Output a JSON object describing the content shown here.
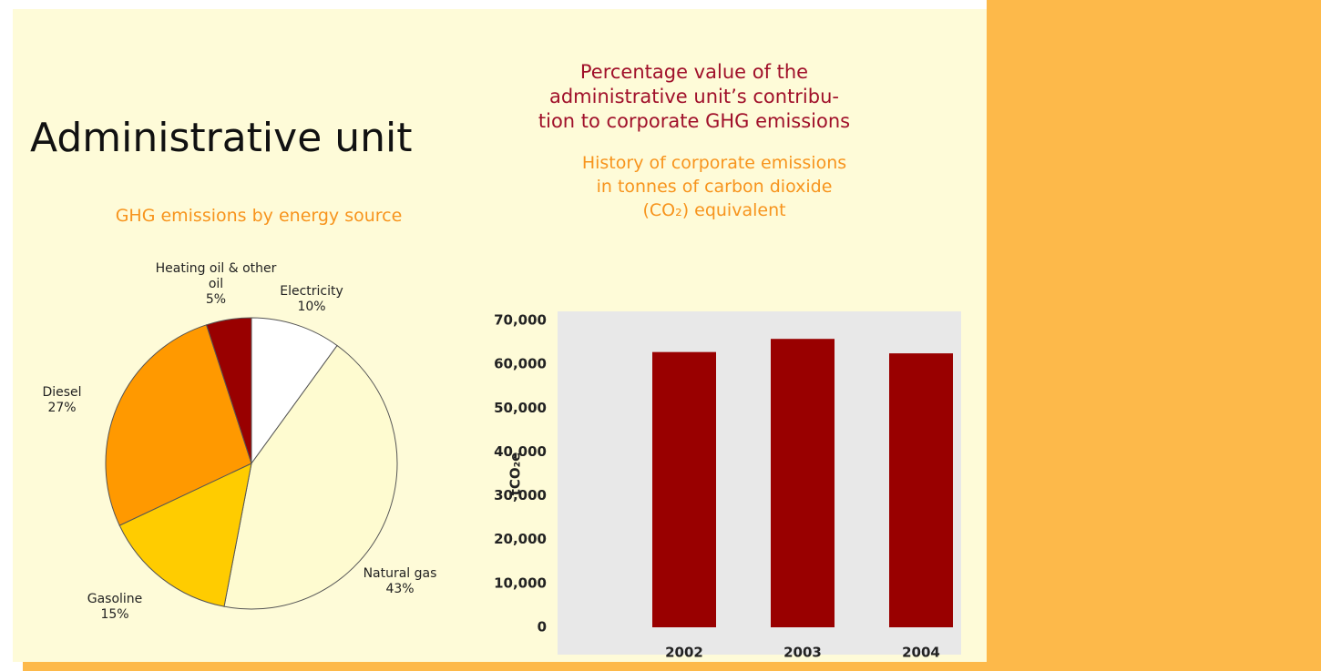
{
  "header": {
    "title": "Administrative unit",
    "subtitle_lines": [
      "Percentage value of the",
      "administrative unit’s contribu-",
      "tion to corporate GHG emissions"
    ]
  },
  "chart_data": [
    {
      "type": "pie",
      "title": "GHG emissions by energy source",
      "categories": [
        "Electricity",
        "Natural gas",
        "Gasoline",
        "Diesel",
        "Heating oil & other oil"
      ],
      "values": [
        10,
        43,
        15,
        27,
        5
      ],
      "value_labels": [
        "10%",
        "43%",
        "15%",
        "27%",
        "5%"
      ],
      "colors": [
        "#ffffff",
        "#fefbd0",
        "#ffcc00",
        "#ff9900",
        "#990000"
      ]
    },
    {
      "type": "bar",
      "title_lines": [
        "History of corporate emissions",
        "in tonnes of carbon dioxide",
        "(CO₂) equivalent"
      ],
      "ylabel": "tCO₂e",
      "categories": [
        "2002",
        "2003",
        "2004"
      ],
      "values": [
        62800,
        65800,
        62500
      ],
      "color": "#990000",
      "ylim": [
        0,
        70000
      ],
      "yticks": [
        0,
        {
          "value": 10000,
          "label": "10,000"
        },
        {
          "value": 20000,
          "label": "20,000"
        },
        {
          "value": 30000,
          "label": "30,000"
        },
        {
          "value": 40000,
          "label": "40,000"
        },
        {
          "value": 50000,
          "label": "50,000"
        },
        {
          "value": 60000,
          "label": "60,000"
        },
        {
          "value": 70000,
          "label": "70,000"
        }
      ]
    }
  ]
}
